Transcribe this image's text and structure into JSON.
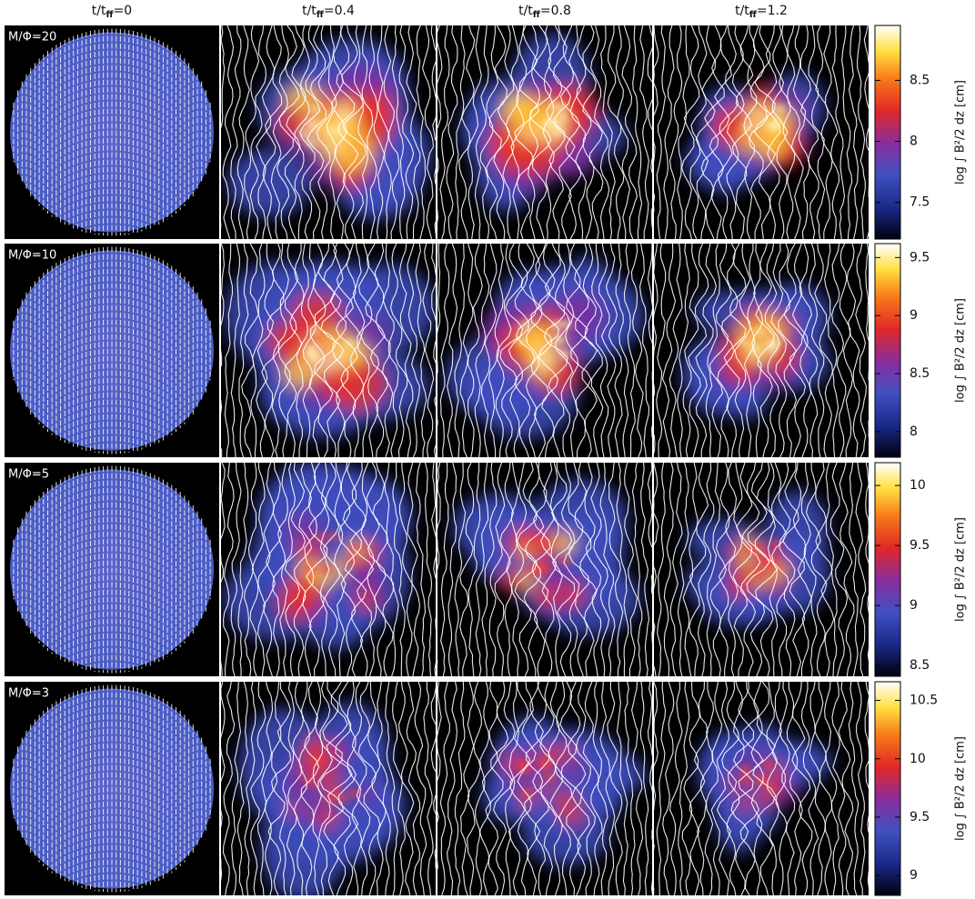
{
  "columns": [
    {
      "prefix": "t/t",
      "subscript": "ff",
      "suffix": "=0"
    },
    {
      "prefix": "t/t",
      "subscript": "ff",
      "suffix": "=0.4"
    },
    {
      "prefix": "t/t",
      "subscript": "ff",
      "suffix": "=0.8"
    },
    {
      "prefix": "t/t",
      "subscript": "ff",
      "suffix": "=1.2"
    }
  ],
  "rows": [
    {
      "label": "M/Φ=20",
      "colorbar": {
        "label": "log ∫ B²/2 dz [cm]",
        "range": [
          7.2,
          8.95
        ],
        "ticks": [
          7.5,
          8,
          8.5
        ]
      }
    },
    {
      "label": "M/Φ=10",
      "colorbar": {
        "label": "log ∫ B²/2 dz [cm]",
        "range": [
          7.78,
          9.62
        ],
        "ticks": [
          8,
          8.5,
          9,
          9.5
        ]
      }
    },
    {
      "label": "M/Φ=5",
      "colorbar": {
        "label": "log ∫ B²/2 dz [cm]",
        "range": [
          8.41,
          10.19
        ],
        "ticks": [
          8.5,
          9,
          9.5,
          10
        ]
      }
    },
    {
      "label": "M/Φ=3",
      "colorbar": {
        "label": "log ∫ B²/2 dz [cm]",
        "range": [
          8.83,
          10.66
        ],
        "ticks": [
          9,
          9.5,
          10,
          10.5
        ]
      }
    }
  ]
}
